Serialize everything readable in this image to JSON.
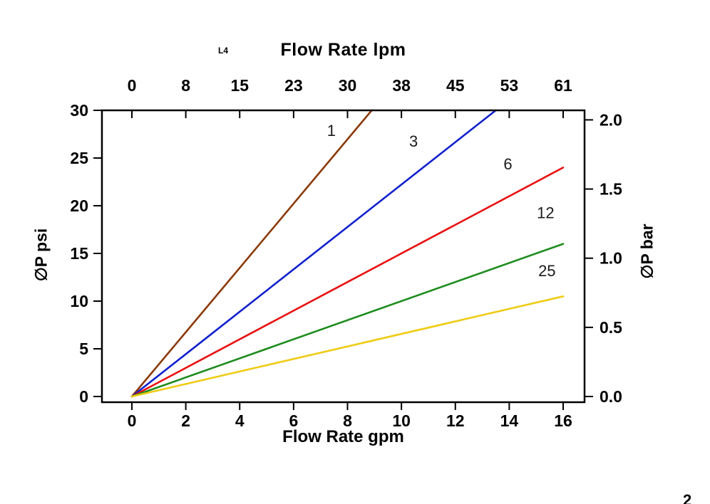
{
  "page": {
    "corner_number": "2"
  },
  "chart_data": {
    "type": "line",
    "title_top": "Flow Rate lpm",
    "annotation": "L4",
    "xlabel_bottom": "Flow Rate gpm",
    "ylabel_left": "∅P psi",
    "ylabel_right": "∅P bar",
    "xlim_gpm": [
      0,
      16
    ],
    "ylim_psi": [
      0,
      30
    ],
    "psi_per_bar": 14.5,
    "x_gpm_ticks": [
      "0",
      "2",
      "4",
      "6",
      "8",
      "10",
      "12",
      "14",
      "16"
    ],
    "x_lpm_ticks": [
      "0",
      "8",
      "15",
      "23",
      "30",
      "38",
      "45",
      "53",
      "61"
    ],
    "y_psi_ticks": [
      "0",
      "5",
      "10",
      "15",
      "20",
      "25",
      "30"
    ],
    "y_bar_ticks": [
      "0.0",
      "0.5",
      "1.0",
      "1.5",
      "2.0"
    ],
    "grid": false,
    "legend": "labels-on-lines",
    "series": [
      {
        "name": "1",
        "color": "#8B3A0A",
        "points": [
          [
            0,
            0
          ],
          [
            8.9,
            30
          ]
        ],
        "label_at": [
          7.4,
          27.3
        ]
      },
      {
        "name": "3",
        "color": "#1020CC",
        "points": [
          [
            0,
            0
          ],
          [
            13.5,
            30
          ]
        ],
        "label_at": [
          10.45,
          26.2
        ]
      },
      {
        "name": "6",
        "color": "#E81010",
        "points": [
          [
            0,
            0
          ],
          [
            16,
            24
          ]
        ],
        "label_at": [
          13.95,
          23.8
        ]
      },
      {
        "name": "12",
        "color": "#1E8C1E",
        "points": [
          [
            0,
            0
          ],
          [
            16,
            16
          ]
        ],
        "label_at": [
          15.35,
          18.7
        ]
      },
      {
        "name": "25",
        "color": "#EFCB12",
        "points": [
          [
            0,
            0
          ],
          [
            16,
            10.5
          ]
        ],
        "label_at": [
          15.4,
          12.6
        ]
      }
    ]
  }
}
